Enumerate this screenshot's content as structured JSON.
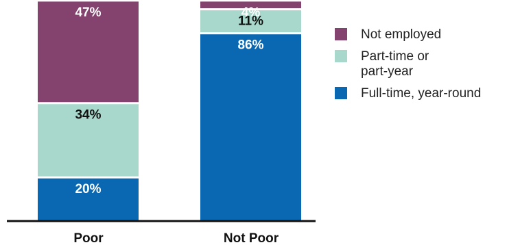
{
  "chart_data": {
    "type": "bar",
    "stacked": true,
    "categories": [
      "Poor",
      "Not Poor"
    ],
    "series": [
      {
        "name": "Full-time, year-round",
        "color": "#0a67b1",
        "values": [
          20,
          86
        ],
        "labels": [
          "20%",
          "86%"
        ],
        "label_color": "#ffffff"
      },
      {
        "name": "Part-time or part-year",
        "color": "#a8d8cb",
        "values": [
          34,
          11
        ],
        "labels": [
          "34%",
          "11%"
        ],
        "label_color": "#111111"
      },
      {
        "name": "Not employed",
        "color": "#84426f",
        "values": [
          47,
          4
        ],
        "labels": [
          "47%",
          "4%"
        ],
        "label_color": "#ffffff"
      }
    ],
    "legend": {
      "position": "right",
      "items": [
        {
          "line1": "Not employed",
          "line2": "",
          "color": "#84426f"
        },
        {
          "line1": "Part-time or",
          "line2": "part-year",
          "color": "#a8d8cb"
        },
        {
          "line1": "Full-time, year-round",
          "line2": "",
          "color": "#0a67b1"
        }
      ]
    },
    "title": "",
    "xlabel": "",
    "ylabel": "",
    "ylim": [
      0,
      100
    ]
  }
}
